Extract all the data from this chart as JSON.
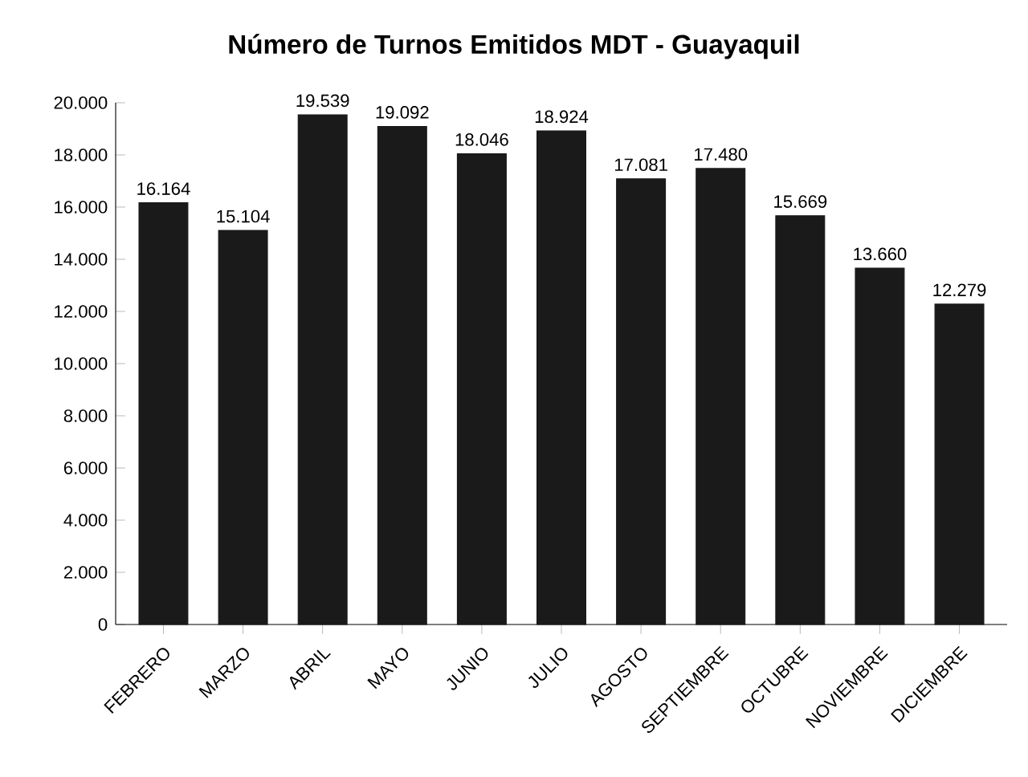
{
  "chart_data": {
    "type": "bar",
    "title": "Número de Turnos Emitidos MDT - Guayaquil",
    "categories": [
      "FEBRERO",
      "MARZO",
      "ABRIL",
      "MAYO",
      "JUNIO",
      "JULIO",
      "AGOSTO",
      "SEPTIEMBRE",
      "OCTUBRE",
      "NOVIEMBRE",
      "DICIEMBRE"
    ],
    "values": [
      16164,
      15104,
      19539,
      19092,
      18046,
      18924,
      17081,
      17480,
      15669,
      13660,
      12279
    ],
    "value_labels": [
      "16.164",
      "15.104",
      "19.539",
      "19.092",
      "18.046",
      "18.924",
      "17.081",
      "17.480",
      "15.669",
      "13.660",
      "12.279"
    ],
    "color": "#1a1a1a",
    "ylim": [
      0,
      20000
    ],
    "yticks": [
      {
        "value": 0,
        "label": "0"
      },
      {
        "value": 2000,
        "label": "2.000"
      },
      {
        "value": 4000,
        "label": "4.000"
      },
      {
        "value": 6000,
        "label": "6.000"
      },
      {
        "value": 8000,
        "label": "8.000"
      },
      {
        "value": 10000,
        "label": "10.000"
      },
      {
        "value": 12000,
        "label": "12.000"
      },
      {
        "value": 14000,
        "label": "14.000"
      },
      {
        "value": 16000,
        "label": "16.000"
      },
      {
        "value": 18000,
        "label": "18.000"
      },
      {
        "value": 20000,
        "label": "20.000"
      }
    ]
  }
}
